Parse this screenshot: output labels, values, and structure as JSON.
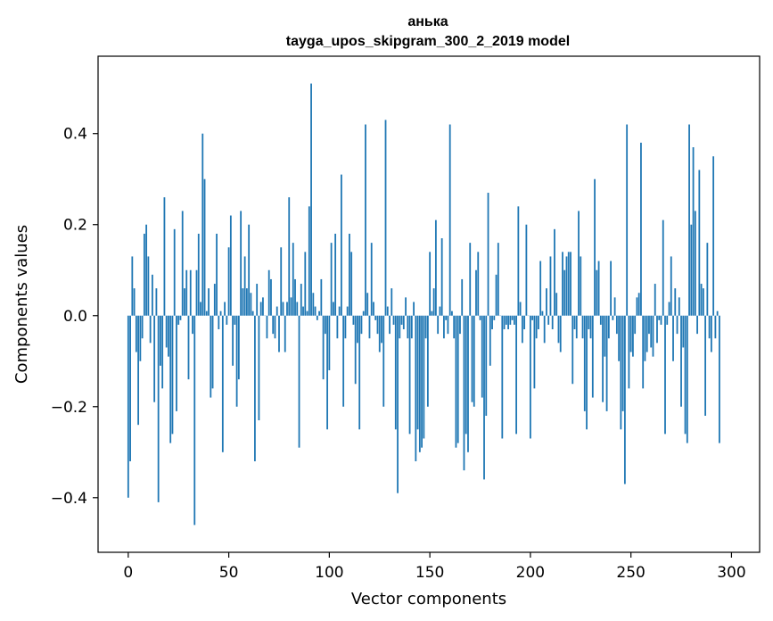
{
  "chart_data": {
    "type": "bar",
    "title": "анька",
    "subtitle": "tayga_upos_skipgram_300_2_2019 model",
    "xlabel": "Vector components",
    "ylabel": "Components values",
    "xlim": [
      -15,
      314
    ],
    "ylim": [
      -0.52,
      0.57
    ],
    "xticks": [
      0,
      50,
      100,
      150,
      200,
      250,
      300
    ],
    "xtick_labels": [
      "0",
      "50",
      "100",
      "150",
      "200",
      "250",
      "300"
    ],
    "yticks": [
      -0.4,
      -0.2,
      0.0,
      0.2,
      0.4
    ],
    "ytick_labels": [
      "−0.4",
      "−0.2",
      "0.0",
      "0.2",
      "0.4"
    ],
    "bar_color": "#1f77b4",
    "values": [
      -0.4,
      -0.32,
      0.13,
      0.06,
      -0.08,
      -0.24,
      -0.1,
      -0.05,
      0.18,
      0.2,
      0.13,
      -0.06,
      0.09,
      -0.19,
      0.06,
      -0.41,
      -0.11,
      -0.16,
      0.26,
      -0.07,
      -0.09,
      -0.28,
      -0.26,
      0.19,
      -0.21,
      -0.02,
      -0.01,
      0.23,
      0.06,
      0.1,
      -0.14,
      0.1,
      -0.04,
      -0.46,
      0.1,
      0.18,
      0.03,
      0.4,
      0.3,
      0.01,
      0.06,
      -0.18,
      -0.16,
      0.07,
      0.18,
      -0.03,
      0.01,
      -0.3,
      0.03,
      -0.02,
      0.15,
      0.22,
      -0.11,
      -0.02,
      -0.2,
      -0.14,
      0.23,
      0.06,
      0.13,
      0.06,
      0.2,
      0.05,
      0.01,
      -0.32,
      0.07,
      -0.23,
      0.03,
      0.04,
      0.0,
      -0.05,
      0.1,
      0.08,
      -0.04,
      -0.05,
      0.02,
      -0.08,
      0.15,
      0.03,
      -0.08,
      0.03,
      0.26,
      0.04,
      0.16,
      0.08,
      0.03,
      -0.29,
      0.07,
      0.02,
      0.14,
      0.01,
      0.24,
      0.51,
      0.05,
      0.02,
      -0.01,
      0.01,
      0.08,
      -0.14,
      -0.04,
      -0.25,
      -0.12,
      0.16,
      0.03,
      0.18,
      -0.05,
      0.02,
      0.31,
      -0.2,
      -0.05,
      0.02,
      0.18,
      0.14,
      -0.02,
      -0.15,
      -0.06,
      -0.25,
      -0.04,
      0.01,
      0.42,
      0.05,
      -0.05,
      0.16,
      0.03,
      -0.01,
      -0.04,
      -0.08,
      -0.06,
      -0.2,
      0.43,
      0.02,
      -0.04,
      0.06,
      -0.02,
      -0.25,
      -0.39,
      -0.05,
      -0.02,
      -0.03,
      0.04,
      -0.05,
      -0.26,
      -0.05,
      0.03,
      -0.32,
      -0.25,
      -0.3,
      -0.29,
      -0.27,
      -0.05,
      -0.2,
      0.14,
      0.01,
      0.06,
      0.21,
      -0.04,
      0.02,
      0.17,
      -0.05,
      -0.01,
      -0.04,
      0.42,
      0.01,
      -0.05,
      -0.29,
      -0.28,
      -0.04,
      0.08,
      -0.34,
      -0.26,
      -0.3,
      0.16,
      -0.19,
      -0.2,
      0.1,
      0.14,
      -0.01,
      -0.18,
      -0.36,
      -0.22,
      0.27,
      -0.11,
      -0.03,
      -0.01,
      0.09,
      0.16,
      0.0,
      -0.27,
      -0.03,
      -0.02,
      -0.03,
      -0.02,
      -0.01,
      -0.02,
      -0.26,
      0.24,
      0.03,
      -0.06,
      -0.03,
      0.2,
      0.0,
      -0.27,
      -0.01,
      -0.16,
      -0.05,
      -0.03,
      0.12,
      0.01,
      -0.06,
      0.06,
      -0.02,
      0.13,
      -0.03,
      0.19,
      0.05,
      -0.06,
      -0.08,
      0.14,
      0.1,
      0.13,
      0.14,
      0.14,
      -0.15,
      -0.03,
      -0.05,
      0.23,
      0.13,
      -0.05,
      -0.21,
      -0.25,
      -0.03,
      -0.05,
      -0.18,
      0.3,
      0.1,
      0.12,
      -0.02,
      -0.19,
      -0.09,
      -0.21,
      -0.05,
      0.12,
      -0.01,
      0.04,
      -0.04,
      -0.1,
      -0.25,
      -0.21,
      -0.37,
      0.42,
      -0.16,
      -0.08,
      -0.09,
      -0.04,
      0.04,
      0.05,
      0.38,
      -0.16,
      -0.1,
      -0.08,
      -0.04,
      -0.07,
      -0.09,
      0.07,
      -0.06,
      -0.01,
      -0.02,
      0.21,
      -0.26,
      -0.02,
      0.03,
      0.13,
      -0.1,
      0.06,
      -0.04,
      0.04,
      -0.2,
      -0.07,
      -0.26,
      -0.28,
      0.42,
      0.2,
      0.37,
      0.23,
      -0.04,
      0.32,
      0.07,
      0.06,
      -0.22,
      0.16,
      -0.05,
      -0.08,
      0.35,
      -0.05,
      0.01,
      -0.28
    ]
  }
}
